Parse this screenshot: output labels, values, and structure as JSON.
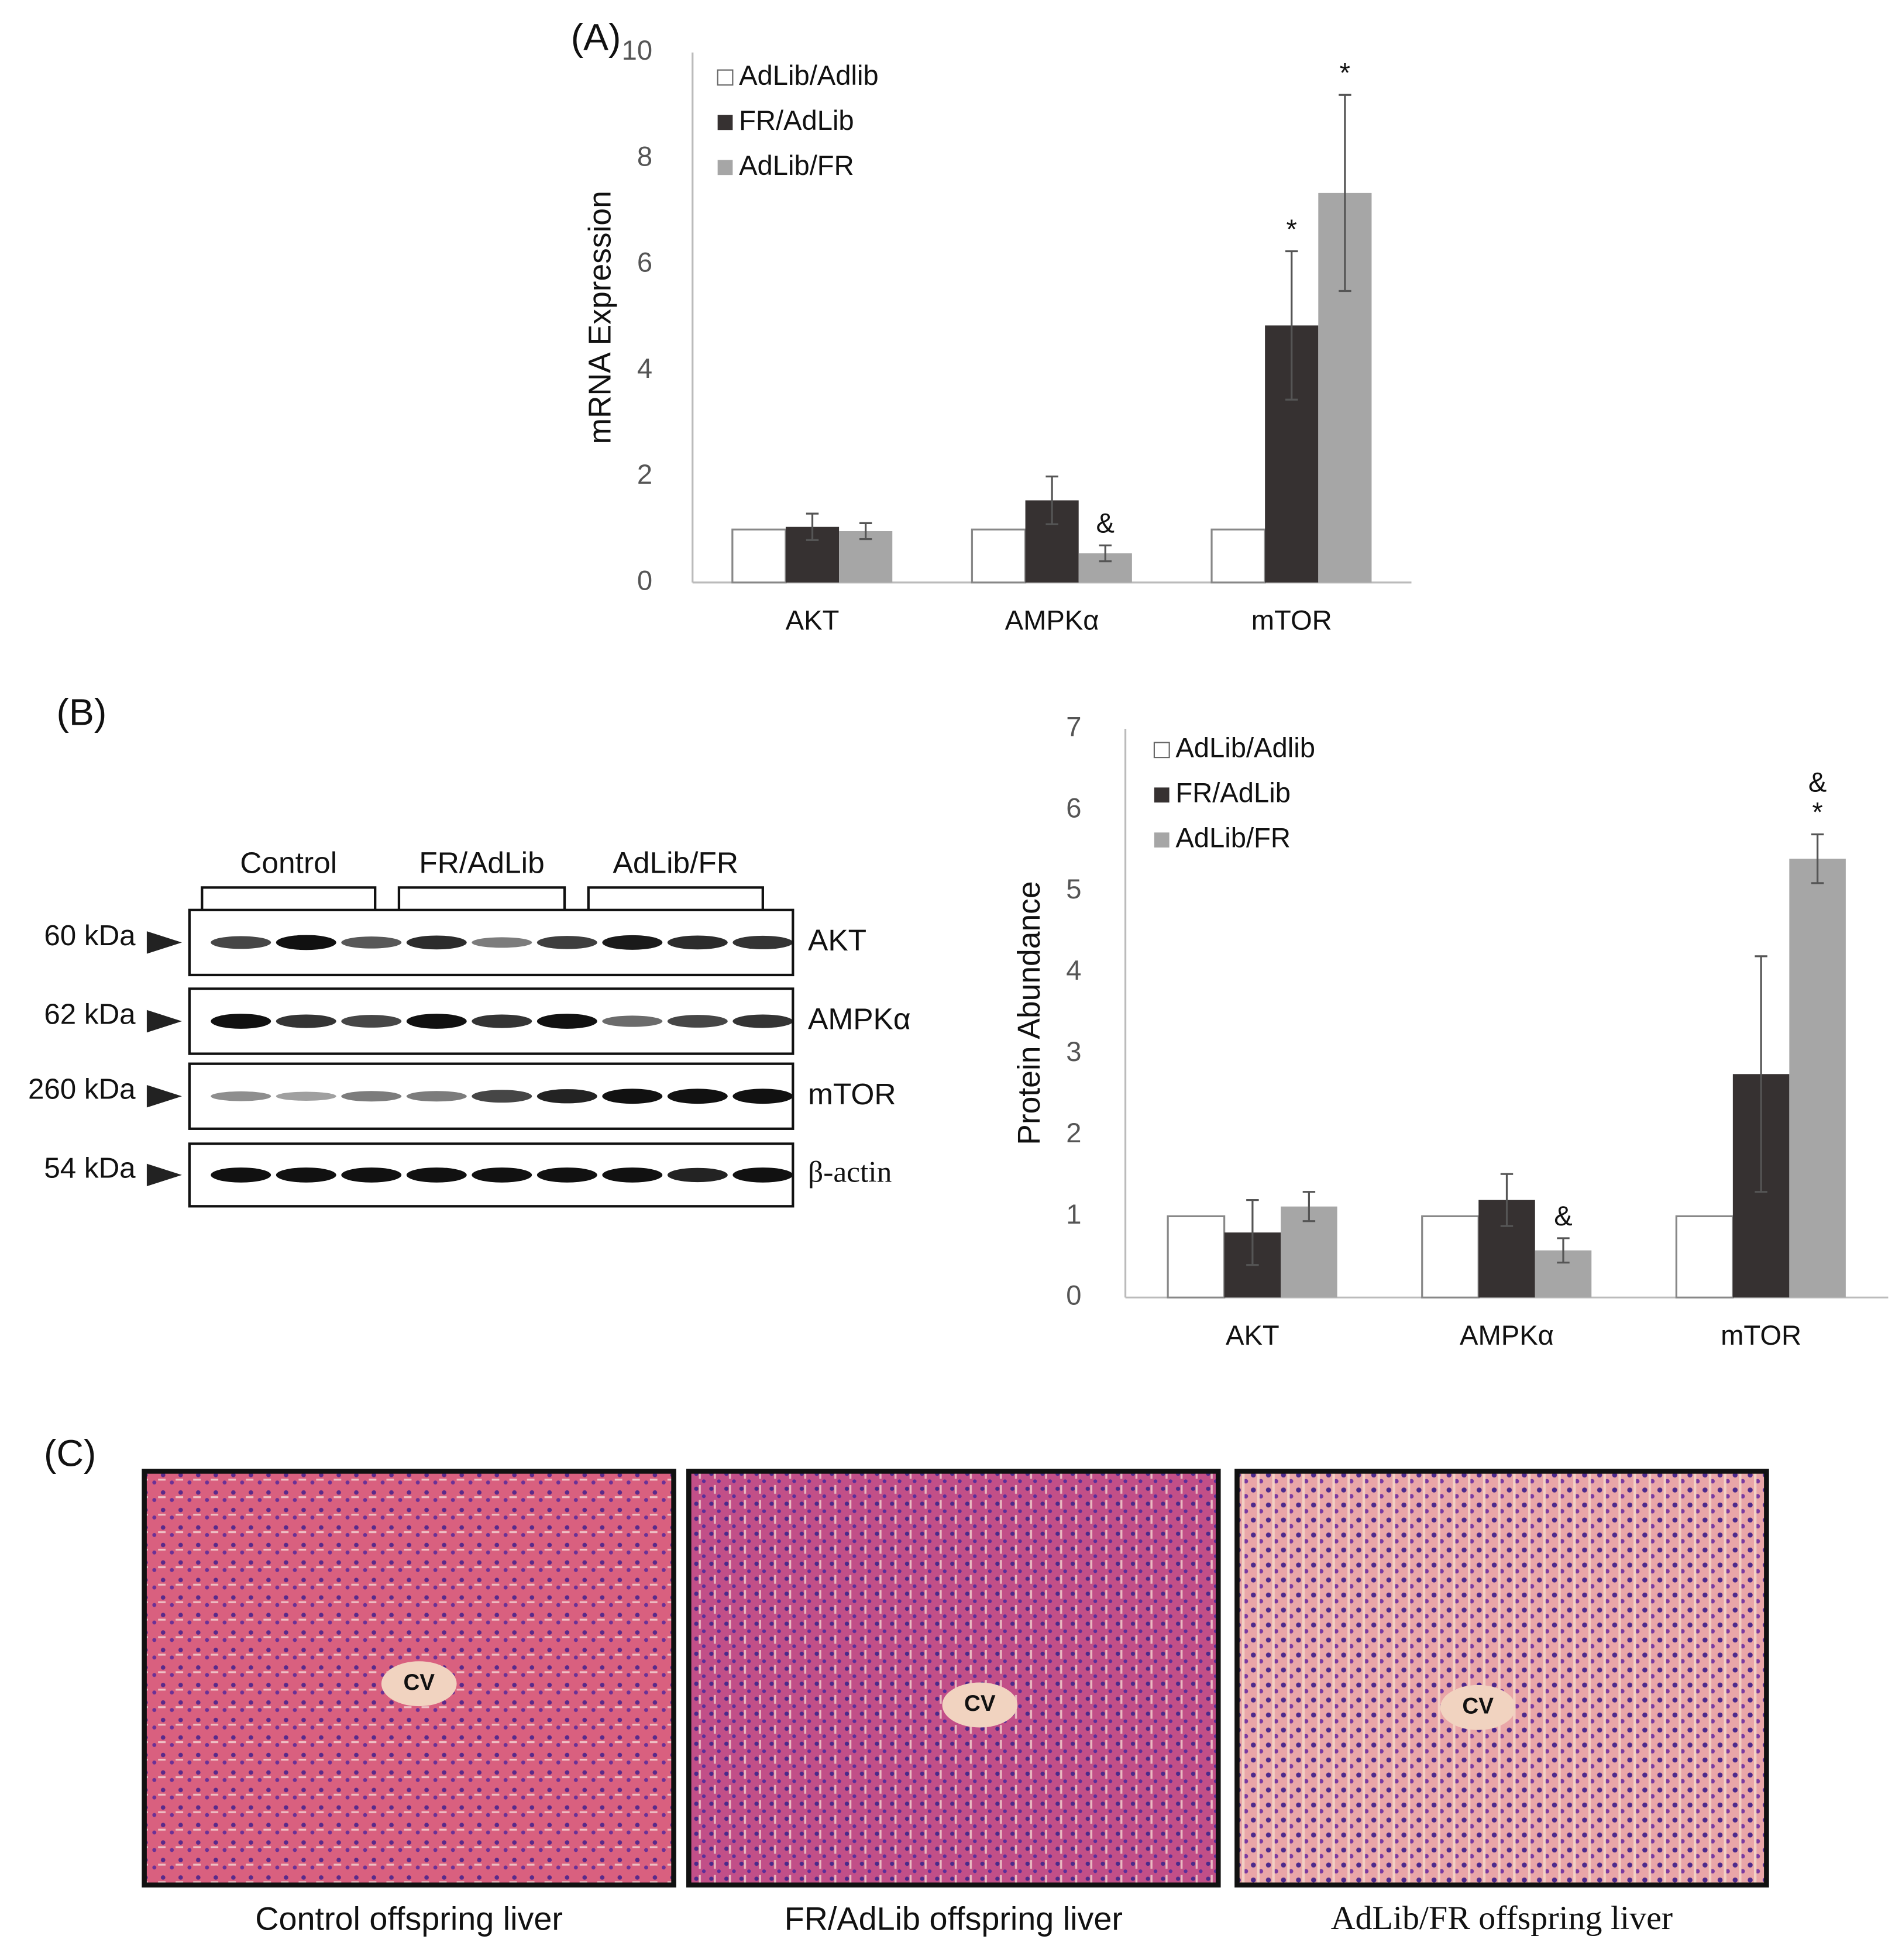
{
  "chart_data": [
    {
      "type": "bar",
      "label": "(A)",
      "y_label": "mRNA Expression",
      "categories": [
        "AKT",
        "AMPKα",
        "mTOR"
      ],
      "series": [
        {
          "name": "AdLib/Adlib",
          "color": "#ffffff",
          "values": [
            1,
            1,
            1
          ]
        },
        {
          "name": "FR/AdLib",
          "color": "#363131",
          "values": [
            1.05,
            1.55,
            4.85
          ],
          "errors": [
            0.25,
            0.45,
            1.4
          ]
        },
        {
          "name": "AdLib/FR",
          "color": "#a6a6a6",
          "values": [
            0.97,
            0.55,
            7.35
          ],
          "errors": [
            0.15,
            0.15,
            1.85
          ]
        }
      ],
      "annotations": [
        {
          "text": "&",
          "category": "AMPKα",
          "series": "AdLib/FR"
        },
        {
          "text": "*",
          "category": "mTOR",
          "series": "FR/AdLib"
        },
        {
          "text": "*",
          "category": "mTOR",
          "series": "AdLib/FR"
        }
      ],
      "ylim": [
        0,
        10
      ],
      "yticks": [
        0,
        2,
        4,
        6,
        8,
        10
      ],
      "grid": false
    },
    {
      "type": "bar",
      "y_label": "Protein Abundance",
      "categories": [
        "AKT",
        "AMPKα",
        "mTOR"
      ],
      "series": [
        {
          "name": "AdLib/Adlib",
          "color": "#ffffff",
          "values": [
            1,
            1,
            1
          ]
        },
        {
          "name": "FR/AdLib",
          "color": "#363131",
          "values": [
            0.8,
            1.2,
            2.75
          ],
          "errors": [
            0.4,
            0.32,
            1.45
          ]
        },
        {
          "name": "AdLib/FR",
          "color": "#a6a6a6",
          "values": [
            1.12,
            0.58,
            5.4
          ],
          "errors": [
            0.18,
            0.15,
            0.3
          ]
        }
      ],
      "annotations": [
        {
          "text": "&",
          "category": "AMPKα",
          "series": "AdLib/FR"
        },
        {
          "text": "*",
          "category": "mTOR",
          "series": "AdLib/FR"
        },
        {
          "text": "&",
          "category": "mTOR",
          "series": "AdLib/FR"
        }
      ],
      "ylim": [
        0,
        7
      ],
      "yticks": [
        0,
        1,
        2,
        3,
        4,
        5,
        6,
        7
      ],
      "grid": false
    }
  ],
  "blot": {
    "panel_label": "(B)",
    "groups": [
      "Control",
      "FR/AdLib",
      "AdLib/FR"
    ],
    "rows": [
      {
        "marker": "60 kDa",
        "protein": "AKT"
      },
      {
        "marker": "62 kDa",
        "protein": "AMPKα"
      },
      {
        "marker": "260 kDa",
        "protein": "mTOR"
      },
      {
        "marker": "54 kDa",
        "protein": "β-actin"
      }
    ]
  },
  "histology": {
    "panel_label": "(C)",
    "panels": [
      {
        "label": "CV",
        "caption": "Control offspring liver"
      },
      {
        "label": "CV",
        "caption": "FR/AdLib offspring liver"
      },
      {
        "label": "CV",
        "caption": "AdLib/FR offspring liver"
      }
    ]
  }
}
